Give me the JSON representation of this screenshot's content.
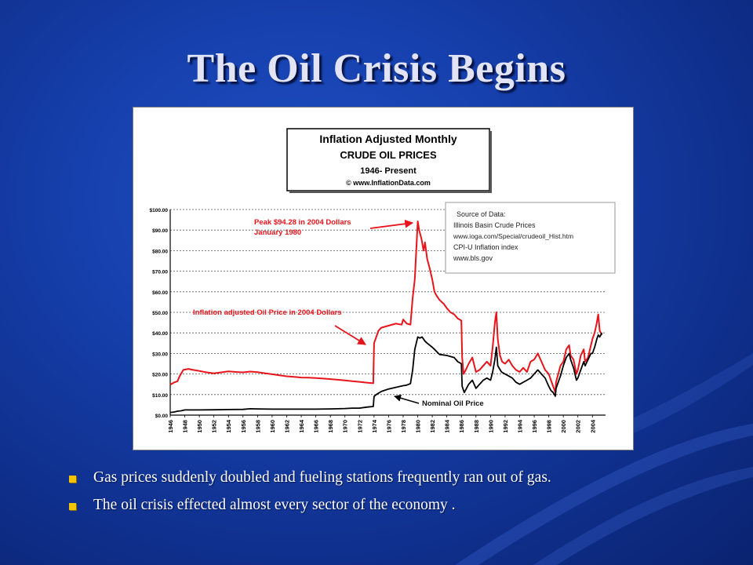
{
  "slide": {
    "title": "The Oil Crisis Begins",
    "bullets": [
      "Gas prices suddenly doubled and fueling stations frequently ran out of gas.",
      "The oil crisis effected almost every sector of the economy ."
    ]
  },
  "colors": {
    "background": "#1640ad",
    "bullet_marker": "#f5c400",
    "adjusted_series": "#e8141b",
    "nominal_series": "#000000"
  },
  "chart_data": {
    "type": "line",
    "title_box": [
      "Inflation Adjusted Monthly",
      "CRUDE OIL PRICES",
      "1946- Present",
      "© www.InflationData.com"
    ],
    "source_box": [
      "Source of Data:",
      "Illinois Basin Crude Prices",
      "www.ioga.com/Special/crudeoil_Hist.htm",
      "CPI-U Inflation index",
      "www.bls.gov"
    ],
    "ylim": [
      0,
      100
    ],
    "xlim": [
      1946,
      2005.8
    ],
    "y_ticks": [
      "$0.00",
      "$10.00",
      "$20.00",
      "$30.00",
      "$40.00",
      "$50.00",
      "$60.00",
      "$70.00",
      "$80.00",
      "$90.00",
      "$100.00"
    ],
    "x_ticks": [
      "1946",
      "1948",
      "1950",
      "1952",
      "1954",
      "1956",
      "1958",
      "1960",
      "1962",
      "1964",
      "1966",
      "1968",
      "1970",
      "1972",
      "1974",
      "1976",
      "1978",
      "1980",
      "1982",
      "1984",
      "1986",
      "1988",
      "1990",
      "1992",
      "1994",
      "1996",
      "1998",
      "2000",
      "2002",
      "2004"
    ],
    "grid": true,
    "series": [
      {
        "key": "adjusted",
        "x": [
          1946,
          1946.5,
          1947,
          1947.3,
          1947.8,
          1948.5,
          1949,
          1950,
          1951,
          1952,
          1953,
          1954,
          1955,
          1956,
          1957,
          1958,
          1959,
          1960,
          1961,
          1962,
          1963,
          1964,
          1965,
          1966,
          1967,
          1968,
          1969,
          1970,
          1971,
          1972,
          1973,
          1973.9,
          1974,
          1974.3,
          1974.6,
          1975,
          1976,
          1977,
          1977.8,
          1978,
          1978.5,
          1979,
          1979.3,
          1979.6,
          1980,
          1980.2,
          1980.5,
          1980.8,
          1981,
          1981.3,
          1981.6,
          1982,
          1982.3,
          1982.6,
          1983,
          1983.3,
          1983.6,
          1984,
          1984.5,
          1985,
          1985.5,
          1986,
          1986.1,
          1986.3,
          1986.6,
          1987,
          1987.5,
          1988,
          1988.5,
          1989,
          1989.5,
          1990,
          1990.3,
          1990.6,
          1990.8,
          1991,
          1991.3,
          1991.6,
          1992,
          1992.5,
          1993,
          1993.5,
          1994,
          1994.5,
          1995,
          1995.5,
          1996,
          1996.5,
          1997,
          1997.5,
          1998,
          1998.3,
          1998.6,
          1998.9,
          1999,
          1999.3,
          1999.6,
          2000,
          2000.4,
          2000.8,
          2001,
          2001.4,
          2001.8,
          2002,
          2002.4,
          2002.8,
          2003,
          2003.4,
          2003.8,
          2004,
          2004.3,
          2004.6,
          2004.8,
          2005,
          2005.3
        ],
        "y": [
          14.8,
          15.8,
          16.5,
          19,
          22,
          22.5,
          22.1,
          21.5,
          20.8,
          20.3,
          20.8,
          21.3,
          21,
          20.8,
          21.2,
          20.9,
          20.4,
          19.9,
          19.4,
          18.9,
          18.6,
          18.3,
          18.2,
          18,
          17.8,
          17.5,
          17.2,
          16.9,
          16.5,
          16.2,
          15.8,
          15.5,
          35,
          38,
          41,
          42.5,
          43.5,
          44.5,
          44,
          46.5,
          44.5,
          44,
          57,
          66,
          94.28,
          90,
          86,
          80,
          84,
          76,
          72,
          66,
          60,
          58,
          56,
          55,
          54,
          52,
          50,
          49,
          47,
          46,
          28,
          20,
          22,
          25,
          28,
          21,
          22,
          24,
          26,
          24,
          33,
          45,
          50,
          37,
          29,
          26,
          25,
          27,
          24,
          22,
          21,
          23,
          21,
          26,
          27,
          30,
          26,
          22,
          20,
          17,
          14,
          11,
          16,
          20,
          24,
          26,
          32,
          34,
          29,
          27,
          20,
          22,
          29,
          32,
          26,
          28,
          34,
          37,
          40,
          45,
          49,
          41,
          39
        ],
        "name_label": "Inflation adjusted Oil Price in 2004 Dollars"
      },
      {
        "key": "nominal",
        "x": [
          1946,
          1946.5,
          1947,
          1947.5,
          1948,
          1949,
          1950,
          1952,
          1954,
          1956,
          1957,
          1958,
          1960,
          1962,
          1964,
          1966,
          1968,
          1970,
          1971,
          1972,
          1973,
          1973.9,
          1974,
          1974.3,
          1975,
          1976,
          1977,
          1978,
          1978.5,
          1979,
          1979.3,
          1979.6,
          1980,
          1980.3,
          1980.6,
          1981,
          1981.3,
          1982,
          1982.3,
          1983,
          1984,
          1985,
          1985.5,
          1986,
          1986.1,
          1986.4,
          1987,
          1987.5,
          1988,
          1988.5,
          1989,
          1989.5,
          1990,
          1990.3,
          1990.6,
          1990.8,
          1991,
          1991.5,
          1992,
          1992.5,
          1993,
          1993.5,
          1994,
          1994.5,
          1995,
          1995.5,
          1996,
          1996.5,
          1997,
          1997.5,
          1998,
          1998.3,
          1998.6,
          1998.9,
          1999,
          1999.3,
          1999.6,
          2000,
          2000.4,
          2000.8,
          2001,
          2001.4,
          2001.8,
          2002,
          2002.4,
          2002.8,
          2003,
          2003.4,
          2003.8,
          2004,
          2004.3,
          2004.6,
          2004.8,
          2005,
          2005.3
        ],
        "y": [
          1.3,
          1.5,
          1.9,
          2.1,
          2.5,
          2.5,
          2.5,
          2.6,
          2.7,
          2.8,
          3.1,
          3.0,
          2.9,
          2.9,
          2.9,
          2.9,
          3.0,
          3.2,
          3.4,
          3.4,
          3.9,
          4.2,
          9.1,
          10,
          11.5,
          12.7,
          13.5,
          14.3,
          14.6,
          15.3,
          22,
          32,
          38,
          37.5,
          38,
          36,
          35,
          33,
          32,
          29.5,
          29,
          28,
          26,
          25,
          14,
          11,
          15,
          17,
          13,
          15,
          17,
          18,
          17,
          21,
          27,
          33,
          24,
          21,
          20,
          19,
          18,
          16,
          15,
          16,
          17,
          18,
          20,
          22,
          20,
          18,
          14,
          12,
          11,
          9.2,
          13,
          16,
          19,
          24,
          28,
          30,
          27,
          23,
          17,
          18,
          22,
          26,
          24,
          27,
          30,
          30,
          33,
          37,
          39,
          38,
          40
        ],
        "name_label": "Nominal Oil Price"
      }
    ],
    "annotations": {
      "peak_line1": "Peak $94.28 in 2004 Dollars",
      "peak_line2": "January 1980",
      "adjusted_label": "Inflation adjusted Oil Price in 2004 Dollars",
      "nominal_label": "Nominal Oil Price"
    }
  }
}
